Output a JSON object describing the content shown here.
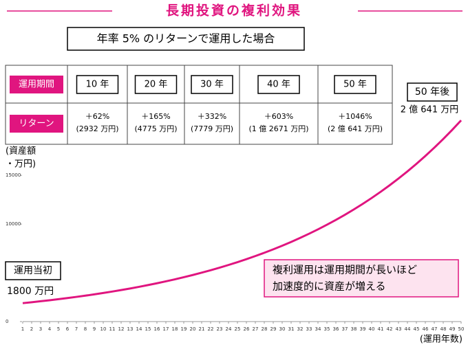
{
  "chart_data": {
    "type": "line",
    "title": "長期投資の複利効果",
    "subtitle": "年率 5% のリターンで運用した場合",
    "y_label_lines": [
      "(資産額",
      "・万円)"
    ],
    "x_label": "(運用年数)",
    "x": [
      1,
      2,
      3,
      4,
      5,
      6,
      7,
      8,
      9,
      10,
      11,
      12,
      13,
      14,
      15,
      16,
      17,
      18,
      19,
      20,
      21,
      22,
      23,
      24,
      25,
      26,
      27,
      28,
      29,
      30,
      31,
      32,
      33,
      34,
      35,
      36,
      37,
      38,
      39,
      40,
      41,
      42,
      43,
      44,
      45,
      46,
      47,
      48,
      49,
      50
    ],
    "series": [
      {
        "color": "#e0157f",
        "values": [
          1890,
          1985,
          2084,
          2188,
          2297,
          2412,
          2533,
          2659,
          2792,
          2932,
          3079,
          3233,
          3394,
          3564,
          3742,
          3929,
          4126,
          4332,
          4549,
          4775,
          5015,
          5265,
          5529,
          5805,
          6095,
          6400,
          6720,
          7056,
          7409,
          7779,
          8168,
          8577,
          9006,
          9456,
          9929,
          10425,
          10947,
          11494,
          12069,
          12671,
          13306,
          13971,
          14669,
          15403,
          16173,
          16982,
          17831,
          18722,
          19658,
          20641
        ]
      }
    ],
    "xlim": [
      1,
      50
    ],
    "xticks": [
      1,
      2,
      3,
      4,
      5,
      6,
      7,
      8,
      9,
      10,
      11,
      12,
      13,
      14,
      15,
      16,
      17,
      18,
      19,
      20,
      21,
      22,
      23,
      24,
      25,
      26,
      27,
      28,
      29,
      30,
      31,
      32,
      33,
      34,
      35,
      36,
      37,
      38,
      39,
      40,
      41,
      42,
      43,
      44,
      45,
      46,
      47,
      48,
      49,
      50
    ],
    "ylim": [
      0,
      21000
    ],
    "yticks": [
      0,
      10000,
      15000
    ],
    "annotations": {
      "end_title": "50 年後",
      "end_value": "2 億 641 万円",
      "start_title": "運用当初",
      "start_value": "1800 万円",
      "note_lines": [
        "複利運用は運用期間が長いほど",
        "加速度的に資産が増える"
      ]
    },
    "table": {
      "row_headers": [
        "運用期間",
        "リターン"
      ],
      "periods": [
        "10 年",
        "20 年",
        "30 年",
        "40 年",
        "50 年"
      ],
      "returns": [
        "＋62%",
        "＋165%",
        "＋332%",
        "＋603%",
        "＋1046%"
      ],
      "amounts": [
        "(2932 万円)",
        "(4775 万円)",
        "(7779 万円)",
        "(1 億 2671 万円)",
        "(2 億 641 万円)"
      ]
    }
  }
}
